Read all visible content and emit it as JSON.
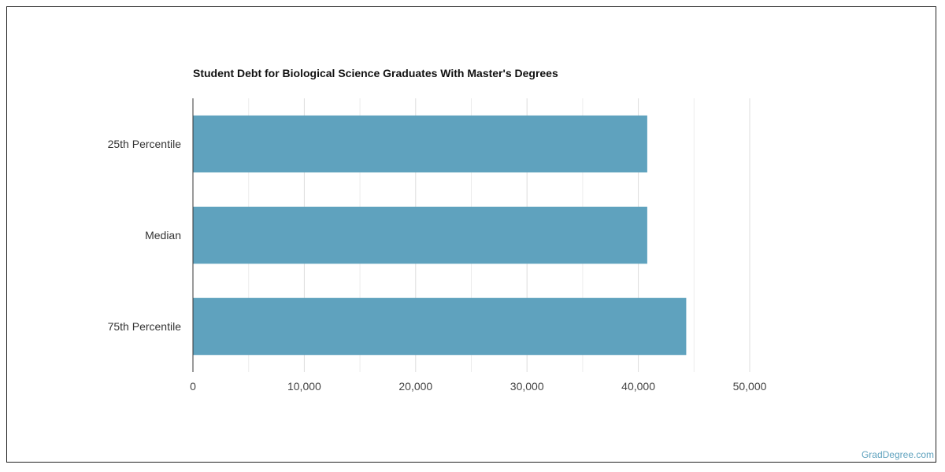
{
  "chart_data": {
    "type": "bar",
    "orientation": "horizontal",
    "title": "Student Debt for Biological Science Graduates With Master's Degrees",
    "categories": [
      "25th Percentile",
      "Median",
      "75th Percentile"
    ],
    "values": [
      40800,
      40800,
      44300
    ],
    "xlim": [
      0,
      50000
    ],
    "x_ticks": [
      0,
      10000,
      20000,
      30000,
      40000,
      50000
    ],
    "x_tick_labels": [
      "0",
      "10,000",
      "20,000",
      "30,000",
      "40,000",
      "50,000"
    ],
    "xlabel": "",
    "ylabel": "",
    "grid": true,
    "bar_color": "#5fa2be",
    "grid_color": "#dddddd"
  },
  "watermark": "GradDegree.com"
}
